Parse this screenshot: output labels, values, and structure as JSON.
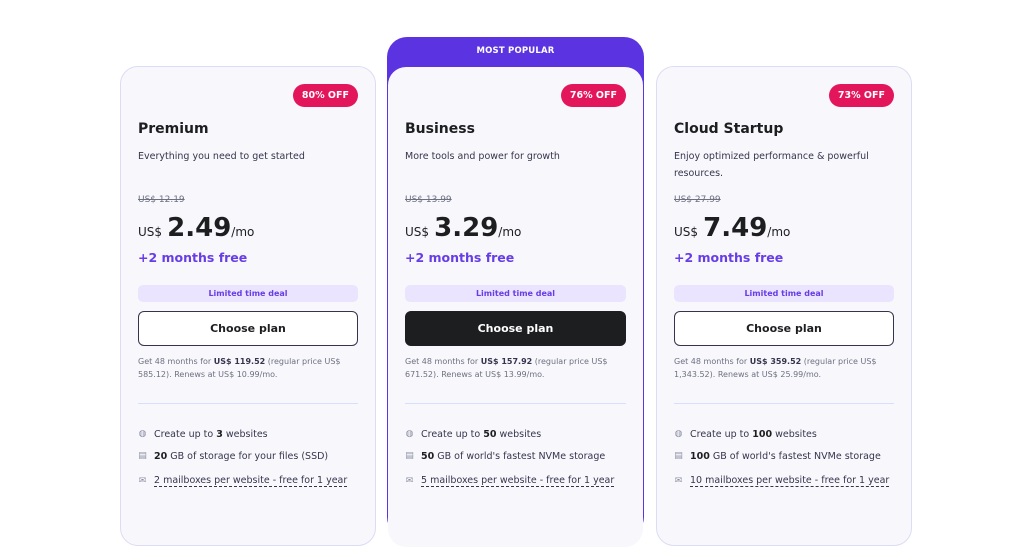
{
  "most_popular_label": "MOST POPULAR",
  "colors": {
    "accent": "#673de6",
    "popular_header": "#5b33e0",
    "badge": "#e3165b"
  },
  "plans": [
    {
      "name": "Premium",
      "badge": "80% OFF",
      "description": "Everything you need to get started",
      "old_price": "US$ 12.19",
      "currency": "US$",
      "price": "2.49",
      "period": "/mo",
      "bonus": "+2 months free",
      "deal": "Limited time deal",
      "cta": "Choose plan",
      "fine_pre": "Get 48 months for ",
      "fine_total": "US$ 119.52",
      "fine_post": " (regular price US$ 585.12). Renews at US$ 10.99/mo.",
      "features": {
        "websites_pre": "Create up to ",
        "websites_num": "3",
        "websites_post": " websites",
        "storage_num": "20",
        "storage_post": " GB of storage for your files (SSD)",
        "mail": "2 mailboxes per website - free for 1 year"
      }
    },
    {
      "name": "Business",
      "badge": "76% OFF",
      "description": "More tools and power for growth",
      "old_price": "US$ 13.99",
      "currency": "US$",
      "price": "3.29",
      "period": "/mo",
      "bonus": "+2 months free",
      "deal": "Limited time deal",
      "cta": "Choose plan",
      "fine_pre": "Get 48 months for ",
      "fine_total": "US$ 157.92",
      "fine_post": " (regular price US$ 671.52). Renews at US$ 13.99/mo.",
      "features": {
        "websites_pre": "Create up to ",
        "websites_num": "50",
        "websites_post": " websites",
        "storage_num": "50",
        "storage_post": " GB of world's fastest NVMe storage",
        "mail": "5 mailboxes per website - free for 1 year"
      }
    },
    {
      "name": "Cloud Startup",
      "badge": "73% OFF",
      "description": "Enjoy optimized performance & powerful resources.",
      "old_price": "US$ 27.99",
      "currency": "US$",
      "price": "7.49",
      "period": "/mo",
      "bonus": "+2 months free",
      "deal": "Limited time deal",
      "cta": "Choose plan",
      "fine_pre": "Get 48 months for ",
      "fine_total": "US$ 359.52",
      "fine_post": " (regular price US$ 1,343.52). Renews at US$ 25.99/mo.",
      "features": {
        "websites_pre": "Create up to ",
        "websites_num": "100",
        "websites_post": " websites",
        "storage_num": "100",
        "storage_post": " GB of world's fastest NVMe storage",
        "mail": "10 mailboxes per website - free for 1 year"
      }
    }
  ]
}
